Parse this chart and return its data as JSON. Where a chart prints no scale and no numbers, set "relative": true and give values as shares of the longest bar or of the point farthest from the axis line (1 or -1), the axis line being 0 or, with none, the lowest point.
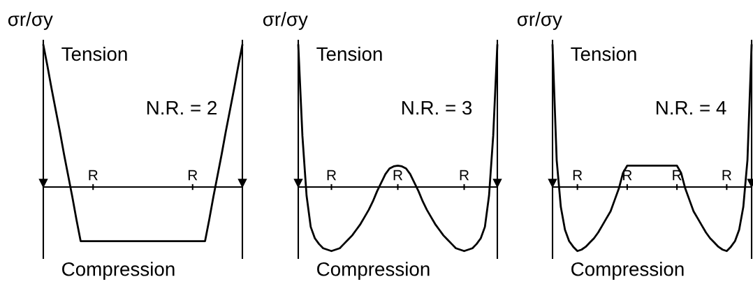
{
  "chart_data": [
    {
      "type": "line",
      "relative": true,
      "ylabel": "σr/σy",
      "color": "#000000",
      "line_style": "solid",
      "annotations": [
        "Tension",
        "N.R. = 2",
        "Compression"
      ],
      "categories": [
        null,
        null,
        null,
        null,
        null,
        null,
        null,
        null,
        null,
        null,
        null,
        null,
        "R",
        null,
        null,
        null,
        null,
        null,
        null,
        null,
        null,
        null,
        null,
        null,
        null,
        null,
        null,
        null,
        null,
        null,
        null,
        null,
        null,
        null,
        null,
        null,
        "R",
        null,
        null,
        null,
        null,
        null,
        null,
        null,
        null,
        null,
        null,
        null,
        null
      ],
      "values": [
        1,
        0.85,
        0.69,
        0.54,
        0.39,
        0.23,
        0.08,
        -0.07,
        -0.23,
        -0.38,
        -0.38,
        -0.38,
        -0.38,
        -0.38,
        -0.38,
        -0.38,
        -0.38,
        -0.38,
        -0.38,
        -0.38,
        -0.38,
        -0.38,
        -0.38,
        -0.38,
        -0.38,
        -0.38,
        -0.38,
        -0.38,
        -0.38,
        -0.38,
        -0.38,
        -0.38,
        -0.38,
        -0.38,
        -0.38,
        -0.38,
        -0.38,
        -0.38,
        -0.38,
        -0.38,
        -0.23,
        -0.07,
        0.08,
        0.23,
        0.39,
        0.54,
        0.69,
        0.85,
        1
      ]
    },
    {
      "type": "line",
      "relative": true,
      "ylabel": "σr/σy",
      "color": "#000000",
      "line_style": "solid",
      "annotations": [
        "Tension",
        "N.R. = 3",
        "Compression"
      ],
      "categories": [
        null,
        null,
        null,
        null,
        null,
        null,
        null,
        null,
        "R",
        null,
        null,
        null,
        null,
        null,
        null,
        null,
        null,
        null,
        null,
        null,
        null,
        null,
        null,
        null,
        "R",
        null,
        null,
        null,
        null,
        null,
        null,
        null,
        null,
        null,
        null,
        null,
        null,
        null,
        null,
        null,
        "R",
        null,
        null,
        null,
        null,
        null,
        null,
        null,
        null
      ],
      "values": [
        1,
        0.36,
        -0.06,
        -0.28,
        -0.36,
        -0.4,
        -0.43,
        -0.44,
        -0.45,
        -0.44,
        -0.43,
        -0.4,
        -0.37,
        -0.34,
        -0.3,
        -0.26,
        -0.21,
        -0.16,
        -0.1,
        -0.03,
        0.03,
        0.09,
        0.13,
        0.145,
        0.15,
        0.145,
        0.13,
        0.09,
        0.03,
        -0.03,
        -0.1,
        -0.16,
        -0.21,
        -0.26,
        -0.3,
        -0.34,
        -0.37,
        -0.4,
        -0.43,
        -0.44,
        -0.45,
        -0.44,
        -0.43,
        -0.4,
        -0.36,
        -0.28,
        -0.06,
        0.36,
        1
      ]
    },
    {
      "type": "line",
      "relative": true,
      "ylabel": "σr/σy",
      "color": "#000000",
      "line_style": "solid",
      "annotations": [
        "Tension",
        "N.R. = 4",
        "Compression"
      ],
      "categories": [
        null,
        null,
        null,
        null,
        null,
        null,
        "R",
        null,
        null,
        null,
        null,
        null,
        null,
        null,
        null,
        null,
        null,
        null,
        "R",
        null,
        null,
        null,
        null,
        null,
        null,
        null,
        null,
        null,
        null,
        null,
        "R",
        null,
        null,
        null,
        null,
        null,
        null,
        null,
        null,
        null,
        null,
        null,
        "R",
        null,
        null,
        null,
        null,
        null,
        null
      ],
      "values": [
        1,
        0.19,
        -0.14,
        -0.3,
        -0.38,
        -0.42,
        -0.45,
        -0.44,
        -0.42,
        -0.39,
        -0.36,
        -0.32,
        -0.27,
        -0.22,
        -0.17,
        -0.09,
        -0.01,
        0.1,
        0.15,
        0.15,
        0.15,
        0.15,
        0.15,
        0.15,
        0.15,
        0.15,
        0.15,
        0.15,
        0.15,
        0.15,
        0.15,
        0.1,
        -0.01,
        -0.09,
        -0.17,
        -0.22,
        -0.27,
        -0.32,
        -0.36,
        -0.39,
        -0.42,
        -0.44,
        -0.45,
        -0.42,
        -0.38,
        -0.3,
        -0.14,
        0.19,
        1
      ]
    }
  ]
}
